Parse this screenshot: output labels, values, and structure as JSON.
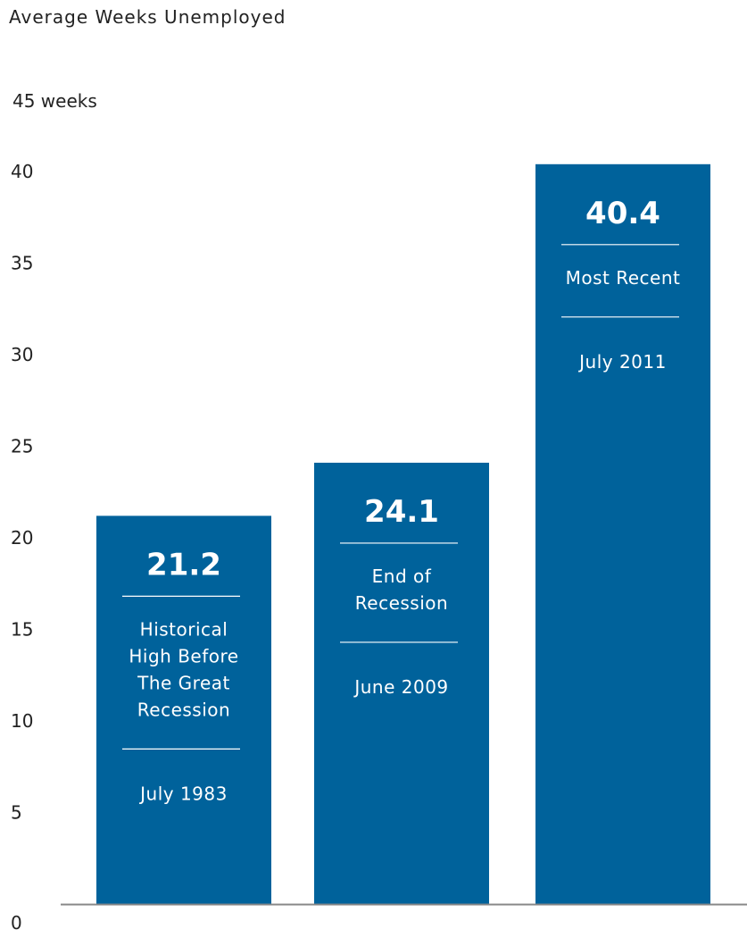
{
  "chart_data": {
    "type": "bar",
    "title": "Average Weeks Unemployed",
    "y_unit_label": "45 weeks",
    "ylim": [
      0,
      45
    ],
    "y_ticks": [
      "0",
      "5",
      "10",
      "15",
      "20",
      "25",
      "30",
      "35",
      "40"
    ],
    "grid": false,
    "legend": "none",
    "bar_color": "#00629b",
    "axis_color": "#888888",
    "categories": [
      "July 1983",
      "June 2009",
      "July 2011"
    ],
    "values": [
      21.2,
      24.1,
      40.4
    ],
    "value_labels": [
      "21.2",
      "24.1",
      "40.4"
    ],
    "bar_descriptions": [
      [
        "Historical",
        "High Before",
        "The Great",
        "Recession"
      ],
      [
        "End of",
        "Recession"
      ],
      [
        "Most Recent"
      ]
    ]
  }
}
